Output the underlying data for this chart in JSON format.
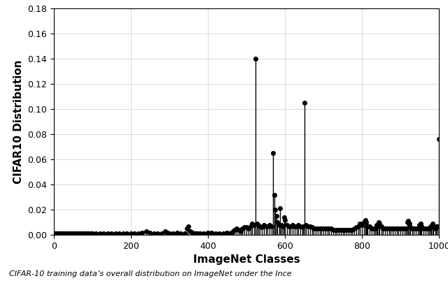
{
  "title": "",
  "xlabel": "ImageNet Classes",
  "ylabel": "CIFAR10 Distribution",
  "xlim": [
    0,
    1000
  ],
  "ylim": [
    0,
    0.18
  ],
  "yticks": [
    0.0,
    0.02,
    0.04,
    0.06,
    0.08,
    0.1,
    0.12,
    0.14,
    0.16,
    0.18
  ],
  "xticks": [
    0,
    200,
    400,
    600,
    800,
    1000
  ],
  "caption": "CIFAR-10 training data’s overall distribution on ImageNet under the Ince",
  "background_color": "#ffffff",
  "grid_color": "#cccccc",
  "stem_color": "black",
  "markersize": 4,
  "linewidth": 1.0,
  "figsize": [
    6.4,
    4.05
  ],
  "dpi": 100,
  "data_points": [
    [
      0,
      0.001
    ],
    [
      3,
      0.001
    ],
    [
      6,
      0.001
    ],
    [
      9,
      0.001
    ],
    [
      12,
      0.001
    ],
    [
      15,
      0.001
    ],
    [
      18,
      0.001
    ],
    [
      21,
      0.001
    ],
    [
      25,
      0.001
    ],
    [
      30,
      0.001
    ],
    [
      35,
      0.001
    ],
    [
      40,
      0.001
    ],
    [
      45,
      0.001
    ],
    [
      50,
      0.001
    ],
    [
      55,
      0.001
    ],
    [
      60,
      0.001
    ],
    [
      65,
      0.001
    ],
    [
      70,
      0.001
    ],
    [
      75,
      0.001
    ],
    [
      80,
      0.001
    ],
    [
      85,
      0.001
    ],
    [
      90,
      0.001
    ],
    [
      95,
      0.001
    ],
    [
      100,
      0.001
    ],
    [
      110,
      0.001
    ],
    [
      120,
      0.001
    ],
    [
      130,
      0.001
    ],
    [
      140,
      0.001
    ],
    [
      150,
      0.001
    ],
    [
      160,
      0.001
    ],
    [
      170,
      0.001
    ],
    [
      180,
      0.001
    ],
    [
      190,
      0.001
    ],
    [
      200,
      0.001
    ],
    [
      210,
      0.001
    ],
    [
      220,
      0.001
    ],
    [
      230,
      0.002
    ],
    [
      240,
      0.003
    ],
    [
      250,
      0.002
    ],
    [
      260,
      0.001
    ],
    [
      270,
      0.001
    ],
    [
      280,
      0.001
    ],
    [
      290,
      0.003
    ],
    [
      295,
      0.002
    ],
    [
      300,
      0.001
    ],
    [
      310,
      0.001
    ],
    [
      320,
      0.002
    ],
    [
      330,
      0.001
    ],
    [
      340,
      0.001
    ],
    [
      345,
      0.005
    ],
    [
      350,
      0.007
    ],
    [
      355,
      0.003
    ],
    [
      360,
      0.002
    ],
    [
      365,
      0.001
    ],
    [
      370,
      0.001
    ],
    [
      375,
      0.001
    ],
    [
      380,
      0.001
    ],
    [
      390,
      0.001
    ],
    [
      400,
      0.002
    ],
    [
      410,
      0.002
    ],
    [
      420,
      0.001
    ],
    [
      430,
      0.001
    ],
    [
      440,
      0.001
    ],
    [
      450,
      0.002
    ],
    [
      460,
      0.002
    ],
    [
      465,
      0.003
    ],
    [
      470,
      0.004
    ],
    [
      475,
      0.005
    ],
    [
      480,
      0.004
    ],
    [
      485,
      0.003
    ],
    [
      490,
      0.005
    ],
    [
      495,
      0.006
    ],
    [
      500,
      0.006
    ],
    [
      505,
      0.005
    ],
    [
      510,
      0.007
    ],
    [
      515,
      0.009
    ],
    [
      520,
      0.008
    ],
    [
      524,
      0.14
    ],
    [
      527,
      0.009
    ],
    [
      530,
      0.008
    ],
    [
      535,
      0.007
    ],
    [
      540,
      0.006
    ],
    [
      545,
      0.008
    ],
    [
      550,
      0.007
    ],
    [
      555,
      0.007
    ],
    [
      560,
      0.008
    ],
    [
      565,
      0.007
    ],
    [
      569,
      0.065
    ],
    [
      572,
      0.032
    ],
    [
      575,
      0.02
    ],
    [
      578,
      0.015
    ],
    [
      580,
      0.01
    ],
    [
      585,
      0.008
    ],
    [
      587,
      0.021
    ],
    [
      590,
      0.008
    ],
    [
      595,
      0.007
    ],
    [
      598,
      0.014
    ],
    [
      600,
      0.012
    ],
    [
      605,
      0.008
    ],
    [
      610,
      0.007
    ],
    [
      615,
      0.007
    ],
    [
      620,
      0.008
    ],
    [
      625,
      0.007
    ],
    [
      630,
      0.007
    ],
    [
      635,
      0.008
    ],
    [
      640,
      0.007
    ],
    [
      645,
      0.006
    ],
    [
      648,
      0.007
    ],
    [
      651,
      0.105
    ],
    [
      655,
      0.008
    ],
    [
      660,
      0.007
    ],
    [
      665,
      0.007
    ],
    [
      670,
      0.006
    ],
    [
      675,
      0.005
    ],
    [
      680,
      0.005
    ],
    [
      685,
      0.005
    ],
    [
      690,
      0.005
    ],
    [
      695,
      0.005
    ],
    [
      700,
      0.005
    ],
    [
      705,
      0.005
    ],
    [
      710,
      0.005
    ],
    [
      715,
      0.005
    ],
    [
      720,
      0.005
    ],
    [
      725,
      0.004
    ],
    [
      730,
      0.004
    ],
    [
      735,
      0.004
    ],
    [
      740,
      0.004
    ],
    [
      745,
      0.004
    ],
    [
      750,
      0.004
    ],
    [
      755,
      0.004
    ],
    [
      760,
      0.004
    ],
    [
      765,
      0.004
    ],
    [
      770,
      0.004
    ],
    [
      775,
      0.004
    ],
    [
      780,
      0.005
    ],
    [
      785,
      0.006
    ],
    [
      790,
      0.007
    ],
    [
      795,
      0.009
    ],
    [
      800,
      0.008
    ],
    [
      805,
      0.01
    ],
    [
      808,
      0.012
    ],
    [
      810,
      0.01
    ],
    [
      813,
      0.007
    ],
    [
      815,
      0.007
    ],
    [
      820,
      0.007
    ],
    [
      825,
      0.005
    ],
    [
      830,
      0.005
    ],
    [
      835,
      0.005
    ],
    [
      838,
      0.008
    ],
    [
      840,
      0.007
    ],
    [
      843,
      0.01
    ],
    [
      845,
      0.009
    ],
    [
      850,
      0.007
    ],
    [
      855,
      0.005
    ],
    [
      860,
      0.005
    ],
    [
      865,
      0.005
    ],
    [
      870,
      0.005
    ],
    [
      875,
      0.005
    ],
    [
      880,
      0.005
    ],
    [
      885,
      0.005
    ],
    [
      890,
      0.005
    ],
    [
      895,
      0.005
    ],
    [
      900,
      0.005
    ],
    [
      905,
      0.005
    ],
    [
      910,
      0.005
    ],
    [
      915,
      0.005
    ],
    [
      918,
      0.01
    ],
    [
      920,
      0.011
    ],
    [
      923,
      0.009
    ],
    [
      925,
      0.006
    ],
    [
      930,
      0.005
    ],
    [
      935,
      0.005
    ],
    [
      940,
      0.005
    ],
    [
      945,
      0.005
    ],
    [
      948,
      0.008
    ],
    [
      950,
      0.007
    ],
    [
      953,
      0.009
    ],
    [
      955,
      0.007
    ],
    [
      960,
      0.005
    ],
    [
      965,
      0.005
    ],
    [
      970,
      0.005
    ],
    [
      975,
      0.005
    ],
    [
      978,
      0.007
    ],
    [
      980,
      0.006
    ],
    [
      983,
      0.009
    ],
    [
      985,
      0.007
    ],
    [
      990,
      0.005
    ],
    [
      993,
      0.007
    ],
    [
      996,
      0.007
    ],
    [
      999,
      0.076
    ]
  ]
}
